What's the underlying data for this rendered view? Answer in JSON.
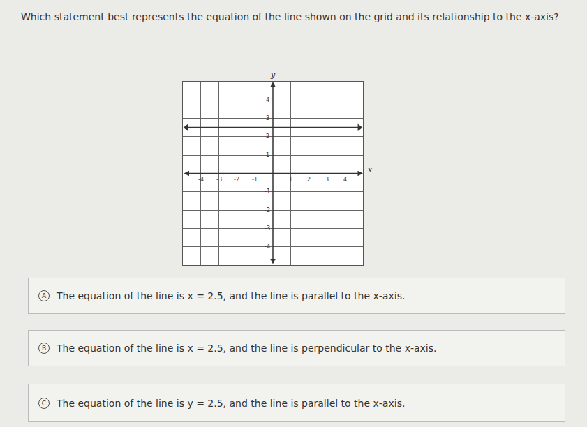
{
  "question": "Which statement best represents the equation of the line shown on the grid and its relationship to the x-axis?",
  "chart_data": {
    "type": "line",
    "xlabel": "x",
    "ylabel": "y",
    "x": [
      -4.8,
      4.8
    ],
    "values": [
      2.5,
      2.5
    ],
    "color": "#333333",
    "marker": "arrow",
    "xlim": [
      -5,
      5
    ],
    "ylim": [
      -5,
      5
    ],
    "xticks": [
      -4,
      -3,
      -2,
      -1,
      1,
      2,
      3,
      4
    ],
    "yticks": [
      -4,
      -3,
      -2,
      -1,
      1,
      2,
      3,
      4
    ],
    "grid": true
  },
  "options": [
    {
      "letter": "A",
      "text": "The equation of the line is x = 2.5, and the line is parallel to the x-axis."
    },
    {
      "letter": "B",
      "text": "The equation of the line is x = 2.5, and the line is perpendicular to the x-axis."
    },
    {
      "letter": "C",
      "text": "The equation of the line is y = 2.5, and the line is parallel to the x-axis."
    }
  ]
}
